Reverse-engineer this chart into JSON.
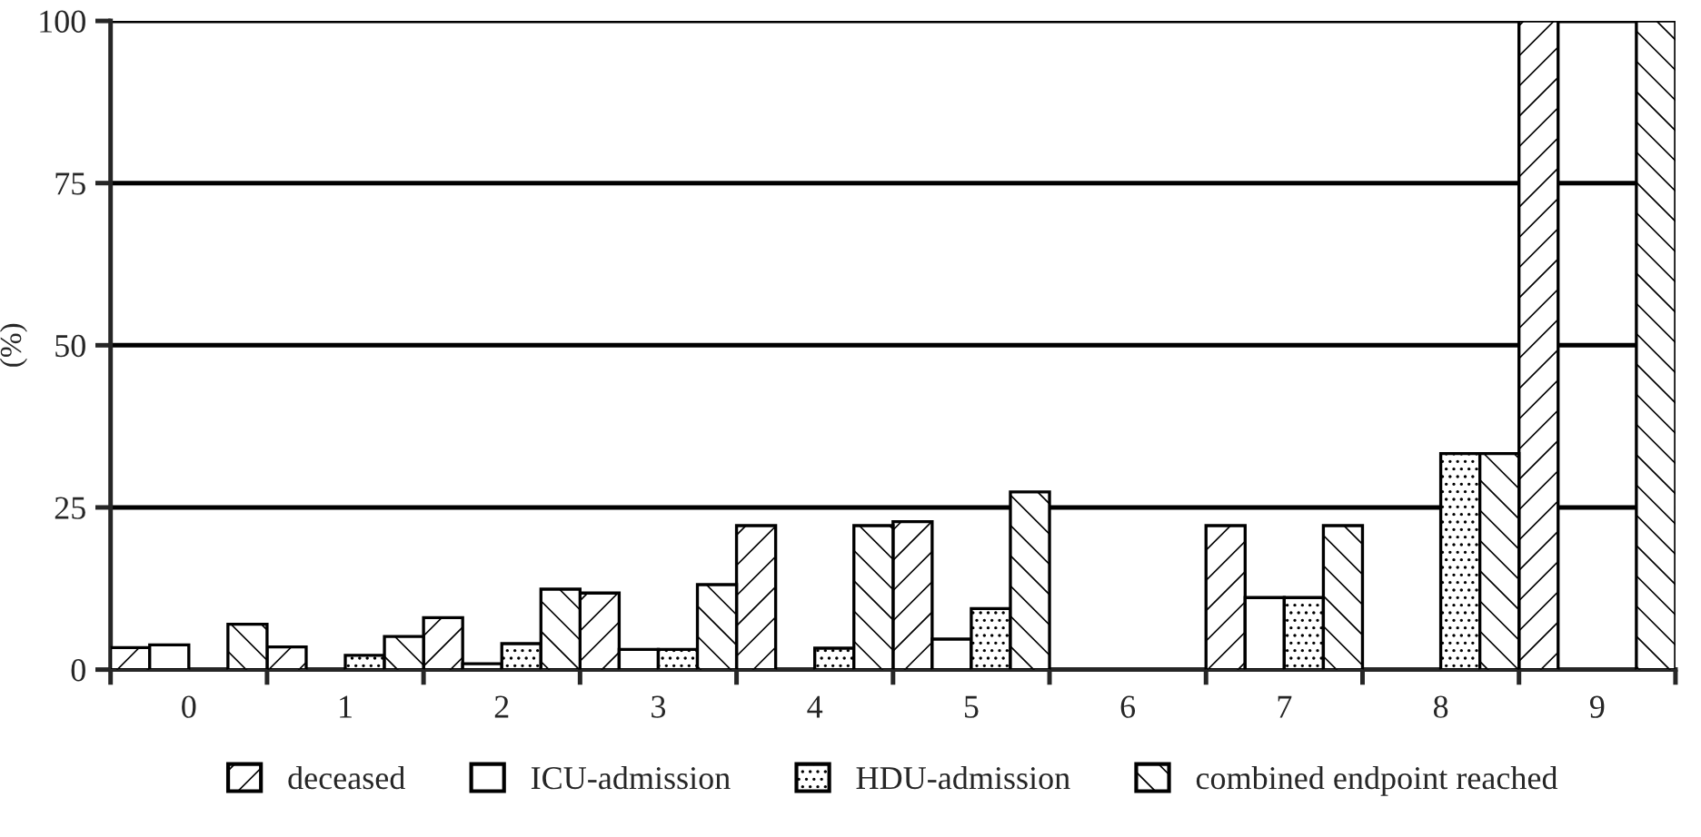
{
  "chart_data": {
    "type": "bar",
    "ylabel": "(%)",
    "categories": [
      "0",
      "1",
      "2",
      "3",
      "4",
      "5",
      "6",
      "7",
      "8",
      "9"
    ],
    "series": [
      {
        "name": "deceased",
        "color": "#000000",
        "values": [
          3.4,
          3.5,
          8.0,
          11.8,
          22.2,
          22.8,
          0,
          22.2,
          0,
          100
        ]
      },
      {
        "name": "ICU-admission",
        "color": "#000000",
        "values": [
          3.8,
          0,
          0.9,
          3.1,
          0,
          4.7,
          0,
          11.1,
          0,
          0
        ]
      },
      {
        "name": "HDU-admission",
        "color": "#000000",
        "values": [
          0,
          2.2,
          4.0,
          3.1,
          3.3,
          9.4,
          0,
          11.1,
          33.3,
          0
        ]
      },
      {
        "name": "combined endpoint reached",
        "color": "#000000",
        "values": [
          7.0,
          5.1,
          12.4,
          13.1,
          22.2,
          27.4,
          0,
          22.2,
          33.3,
          100
        ]
      }
    ],
    "ylim": [
      0,
      100
    ],
    "yticks": [
      0,
      25,
      50,
      75,
      100
    ],
    "grid": "y",
    "legend": "bottom"
  }
}
